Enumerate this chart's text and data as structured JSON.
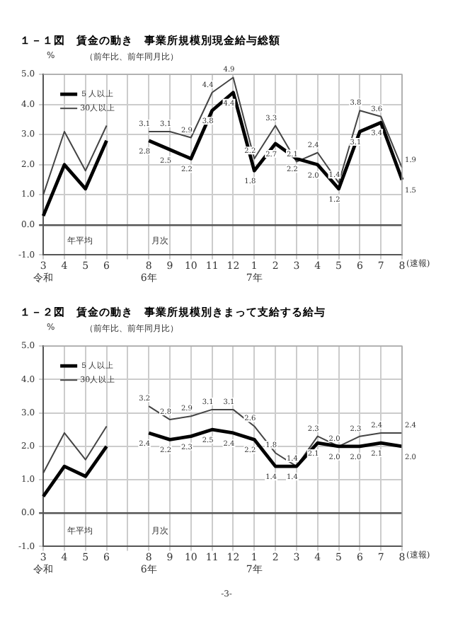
{
  "chart_data": [
    {
      "type": "line",
      "title": "１－１図　賃金の動き　事業所規模別現金給与総額",
      "subtitle": "（前年比、前年同月比）",
      "ylabel": "%",
      "categories": [
        "3\n令和",
        "4",
        "5",
        "6",
        null,
        "8\n6年",
        "9",
        "10",
        "11",
        "12",
        "1\n7年",
        "2",
        "3",
        "4",
        "5",
        "6",
        "7",
        "8"
      ],
      "series": [
        {
          "name": "５人以上",
          "color": "#000000",
          "values": [
            0.3,
            2.0,
            1.2,
            2.8,
            null,
            2.8,
            2.5,
            2.2,
            3.8,
            4.4,
            1.8,
            2.7,
            2.2,
            2.0,
            1.2,
            3.1,
            3.4,
            1.5
          ],
          "value_labels": [
            null,
            null,
            null,
            null,
            null,
            "2.8",
            "2.5",
            "2.2",
            "3.8",
            "4.4",
            "1.8",
            "2.7",
            "2.2",
            "2.0",
            "1.2",
            "3.1",
            "3.4",
            "1.5"
          ]
        },
        {
          "name": "30人以上",
          "color": "#444444",
          "values": [
            1.0,
            3.1,
            1.8,
            3.3,
            null,
            3.1,
            3.1,
            2.9,
            4.4,
            4.9,
            2.2,
            3.3,
            2.1,
            2.4,
            1.4,
            3.8,
            3.6,
            1.9
          ],
          "value_labels": [
            null,
            null,
            null,
            null,
            null,
            "3.1",
            "3.1",
            "2.9",
            "4.4",
            "4.9",
            "2.2",
            "3.3",
            "2.1",
            "2.4",
            "1.4",
            "3.8",
            "3.6",
            "1.9"
          ]
        }
      ],
      "ylim": [
        -1,
        5
      ],
      "yticks": [
        {
          "value": -1,
          "label": "-1.0"
        },
        {
          "value": 0,
          "label": "0.0"
        },
        {
          "value": 1,
          "label": "1.0"
        },
        {
          "value": 2,
          "label": "2.0"
        },
        {
          "value": 3,
          "label": "3.0"
        },
        {
          "value": 4,
          "label": "4.0"
        },
        {
          "value": 5,
          "label": "5.0"
        }
      ],
      "grid": true,
      "legend": "top left",
      "marker": "none",
      "annotations": [
        "年平均",
        "月次",
        "(速報)"
      ]
    },
    {
      "type": "line",
      "title": "１－２図　賃金の動き　事業所規模別きまって支給する給与",
      "subtitle": "（前年比、前年同月比）",
      "ylabel": "%",
      "categories": [
        "3\n令和",
        "4",
        "5",
        "6",
        null,
        "8\n6年",
        "9",
        "10",
        "11",
        "12",
        "1\n7年",
        "2",
        "3",
        "4",
        "5",
        "6",
        "7",
        "8"
      ],
      "series": [
        {
          "name": "５人以上",
          "color": "#000000",
          "values": [
            0.5,
            1.4,
            1.1,
            2.0,
            null,
            2.4,
            2.2,
            2.3,
            2.5,
            2.4,
            2.2,
            1.4,
            1.4,
            2.1,
            2.0,
            2.0,
            2.1,
            2.0
          ],
          "value_labels": [
            null,
            null,
            null,
            null,
            null,
            "2.4",
            "2.2",
            "2.3",
            "2.5",
            "2.4",
            "2.2",
            "1.4",
            "1.4",
            "2.1",
            "2.0",
            "2.0",
            "2.1",
            "2.0"
          ]
        },
        {
          "name": "30人以上",
          "color": "#444444",
          "values": [
            1.2,
            2.4,
            1.6,
            2.6,
            null,
            3.2,
            2.8,
            2.9,
            3.1,
            3.1,
            2.6,
            1.8,
            1.4,
            2.3,
            2.0,
            2.3,
            2.4,
            2.4
          ],
          "value_labels": [
            null,
            null,
            null,
            null,
            null,
            "3.2",
            "2.8",
            "2.9",
            "3.1",
            "3.1",
            "2.6",
            "1.8",
            "1.4",
            "2.3",
            "2.0",
            "2.3",
            "2.4",
            "2.4"
          ]
        }
      ],
      "ylim": [
        -1,
        5
      ],
      "yticks": [
        {
          "value": -1,
          "label": "-1.0"
        },
        {
          "value": 0,
          "label": "0.0"
        },
        {
          "value": 1,
          "label": "1.0"
        },
        {
          "value": 2,
          "label": "2.0"
        },
        {
          "value": 3,
          "label": "3.0"
        },
        {
          "value": 4,
          "label": "4.0"
        },
        {
          "value": 5,
          "label": "5.0"
        }
      ],
      "grid": true,
      "legend": "top left",
      "marker": "none",
      "annotations": [
        "年平均",
        "月次",
        "(速報)",
        "-3-"
      ]
    }
  ]
}
